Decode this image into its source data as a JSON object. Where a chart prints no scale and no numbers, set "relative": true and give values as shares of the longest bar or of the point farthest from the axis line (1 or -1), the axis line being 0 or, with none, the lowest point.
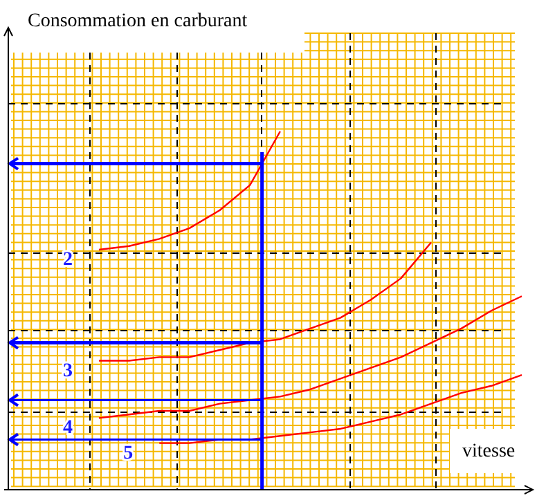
{
  "chart_data": {
    "type": "line",
    "relative": true,
    "annotations": [
      "Consommation en carburant"
    ],
    "ref_lines": [
      {
        "axis": "y",
        "value": 0.91,
        "color": "#0000ff"
      },
      {
        "axis": "y",
        "value": 0.41,
        "color": "#0000ff"
      },
      {
        "axis": "y",
        "value": 0.25,
        "color": "#0000ff"
      },
      {
        "axis": "y",
        "value": 0.14,
        "color": "#0000ff"
      }
    ],
    "xlabel": "vitesse",
    "grid": true,
    "marker": "none",
    "line_style": "solid",
    "categories": [
      null,
      null,
      null,
      null,
      null,
      null,
      null,
      null,
      null,
      null,
      null,
      null,
      null,
      null,
      null,
      null,
      null,
      null
    ],
    "series": [
      {
        "name": "2",
        "color": "#ff0000",
        "values": [
          null,
          null,
          null,
          0.67,
          0.68,
          0.7,
          0.73,
          0.78,
          0.85,
          1.0,
          null,
          null,
          null,
          null,
          null,
          null,
          null,
          null
        ]
      },
      {
        "name": "3",
        "color": "#ff0000",
        "values": [
          null,
          null,
          null,
          0.36,
          0.36,
          0.37,
          0.37,
          0.39,
          0.41,
          0.42,
          0.45,
          0.48,
          0.53,
          0.59,
          0.69,
          null,
          null,
          null
        ]
      },
      {
        "name": "4",
        "color": "#ff0000",
        "values": [
          null,
          null,
          null,
          0.2,
          0.21,
          0.22,
          0.22,
          0.24,
          0.25,
          0.26,
          0.28,
          0.31,
          0.34,
          0.37,
          0.41,
          0.45,
          0.5,
          0.54
        ]
      },
      {
        "name": "5",
        "color": "#ff0000",
        "values": [
          null,
          null,
          null,
          null,
          null,
          0.13,
          0.13,
          0.14,
          0.14,
          0.15,
          0.16,
          0.17,
          0.19,
          0.21,
          0.24,
          0.27,
          0.29,
          0.32
        ]
      }
    ]
  }
}
